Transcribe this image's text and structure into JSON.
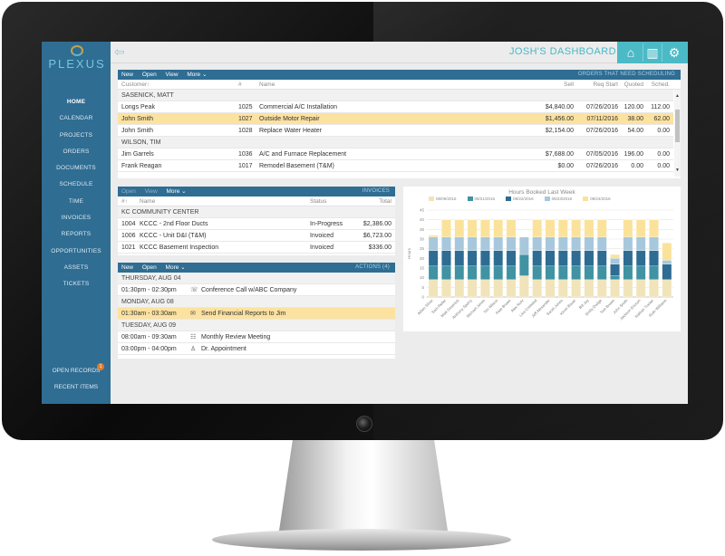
{
  "app": {
    "logo_text": "PLEXUS",
    "dashboard_title": "JOSH'S DASHBOARD"
  },
  "colors": {
    "sidebar": "#2f6d93",
    "accent": "#4bbac6",
    "highlight": "#fce2a0"
  },
  "sidebar": {
    "items": [
      {
        "label": "HOME",
        "active": true
      },
      {
        "label": "CALENDAR"
      },
      {
        "label": "PROJECTS"
      },
      {
        "label": "ORDERS"
      },
      {
        "label": "DOCUMENTS"
      },
      {
        "label": "SCHEDULE"
      },
      {
        "label": "TIME"
      },
      {
        "label": "INVOICES"
      },
      {
        "label": "REPORTS"
      },
      {
        "label": "OPPORTUNITIES"
      },
      {
        "label": "ASSETS"
      },
      {
        "label": "TICKETS"
      }
    ],
    "bottom": [
      {
        "label": "OPEN RECORDS",
        "badge": "1"
      },
      {
        "label": "RECENT ITEMS"
      }
    ]
  },
  "top_icons": [
    "home-icon",
    "building-icon",
    "gears-icon"
  ],
  "orders": {
    "toolbar": [
      "New",
      "Open",
      "View",
      "More"
    ],
    "panel_title": "ORDERS THAT NEED SCHEDULING",
    "columns": {
      "customer": "Customer↑",
      "num": "#",
      "name": "Name",
      "sell": "Sell",
      "req_start": "Req Start",
      "quoted": "Quoted",
      "sched": "Sched."
    },
    "groups": [
      {
        "name": "SASENICK, MATT",
        "rows": [
          {
            "customer": "Longs Peak",
            "num": "1025",
            "name": "Commercial A/C Installation",
            "sell": "$4,840.00",
            "req_start": "07/26/2016",
            "quoted": "120.00",
            "sched": "112.00"
          },
          {
            "customer": "John Smith",
            "num": "1027",
            "name": "Outside Motor Repair",
            "sell": "$1,456.00",
            "req_start": "07/11/2016",
            "quoted": "38.00",
            "sched": "62.00",
            "highlight": true
          },
          {
            "customer": "John Smith",
            "num": "1028",
            "name": "Replace Water Heater",
            "sell": "$2,154.00",
            "req_start": "07/26/2016",
            "quoted": "54.00",
            "sched": "0.00"
          }
        ]
      },
      {
        "name": "WILSON, TIM",
        "rows": [
          {
            "customer": "Jim Garrels",
            "num": "1036",
            "name": "A/C and Furnace Replacement",
            "sell": "$7,688.00",
            "req_start": "07/05/2016",
            "quoted": "196.00",
            "sched": "0.00"
          },
          {
            "customer": "Frank Reagan",
            "num": "1017",
            "name": "Remodel Basement (T&M)",
            "sell": "$0.00",
            "req_start": "07/26/2016",
            "quoted": "0.00",
            "sched": "0.00"
          }
        ]
      }
    ]
  },
  "invoices": {
    "toolbar": [
      "Open",
      "View",
      "More"
    ],
    "panel_title": "INVOICES",
    "columns": {
      "num": "#↑",
      "name": "Name",
      "status": "Status",
      "total": "Total"
    },
    "group": "KC COMMUNITY CENTER",
    "rows": [
      {
        "num": "1004",
        "name": "KCCC - 2nd Floor Ducts",
        "status": "In-Progress",
        "total": "$2,386.00"
      },
      {
        "num": "1006",
        "name": "KCCC - Unit D&I (T&M)",
        "status": "Invoiced",
        "total": "$6,723.00"
      },
      {
        "num": "1021",
        "name": "KCCC Basement Inspection",
        "status": "Invoiced",
        "total": "$336.00"
      }
    ]
  },
  "actions": {
    "toolbar": [
      "New",
      "Open",
      "More"
    ],
    "panel_title": "ACTIONS (4)",
    "days": [
      {
        "date": "THURSDAY, AUG 04",
        "items": [
          {
            "time": "01:30pm - 02:30pm",
            "icon": "conference-icon",
            "glyph": "☏",
            "title": "Conference Call w/ABC Company"
          }
        ]
      },
      {
        "date": "MONDAY, AUG 08",
        "items": [
          {
            "time": "01:30am - 03:30am",
            "icon": "mail-icon",
            "glyph": "✉",
            "title": "Send Financial Reports to Jim",
            "highlight": true
          }
        ]
      },
      {
        "date": "TUESDAY, AUG 09",
        "items": [
          {
            "time": "08:00am - 09:30am",
            "icon": "meeting-icon",
            "glyph": "☷",
            "title": "Monthly Review Meeting"
          },
          {
            "time": "03:00pm - 04:00pm",
            "icon": "person-icon",
            "glyph": "♙",
            "title": "Dr. Appointment"
          }
        ]
      }
    ]
  },
  "chart_data": {
    "type": "bar",
    "stacked": true,
    "title": "Hours Booked Last Week",
    "ylabel": "Hours",
    "ylim": [
      0,
      45
    ],
    "yticks": [
      0,
      5,
      10,
      15,
      20,
      25,
      30,
      35,
      40,
      45
    ],
    "grid": true,
    "legend_position": "top",
    "categories": [
      "Adam Silver",
      "Sam Reller",
      "Matt Sasenick",
      "Anthony Sperry",
      "Michael Jones",
      "Tim Wilson",
      "Pete Brown",
      "Alex Rohr",
      "Lisa Cristobal",
      "Jeff Alexander",
      "Sarah Jones",
      "Kevin Bauer",
      "Bill Jay",
      "Emily Dodge",
      "Tom Brown",
      "John Smith",
      "Jackson Ericson",
      "Nathan Tucker",
      "Ruth Williams"
    ],
    "series": [
      {
        "name": "08/09/2016",
        "color": "#f1e4bb",
        "values": [
          9,
          9,
          9,
          9,
          9,
          9,
          9,
          11,
          9,
          9,
          9,
          9,
          9,
          9,
          9,
          9,
          9,
          9,
          9
        ]
      },
      {
        "name": "08/21/2016",
        "color": "#3f93a3",
        "values": [
          7,
          7,
          7,
          7,
          7,
          7,
          7,
          11,
          7,
          7,
          7,
          7,
          7,
          7,
          2,
          7,
          7,
          7,
          0
        ]
      },
      {
        "name": "08/22/2016",
        "color": "#2e6c93",
        "values": [
          8,
          8,
          8,
          8,
          8,
          8,
          8,
          0,
          8,
          8,
          8,
          8,
          8,
          8,
          6,
          8,
          8,
          8,
          8
        ]
      },
      {
        "name": "08/23/2016",
        "color": "#a7c8dc",
        "values": [
          7,
          7,
          7,
          7,
          7,
          7,
          7,
          9,
          7,
          7,
          7,
          7,
          7,
          7,
          3,
          7,
          7,
          7,
          2
        ]
      },
      {
        "name": "08/24/2016",
        "color": "#fbe29b",
        "values": [
          1,
          9,
          9,
          9,
          9,
          9,
          9,
          0,
          9,
          9,
          9,
          9,
          9,
          9,
          2,
          9,
          9,
          9,
          9
        ]
      }
    ]
  }
}
